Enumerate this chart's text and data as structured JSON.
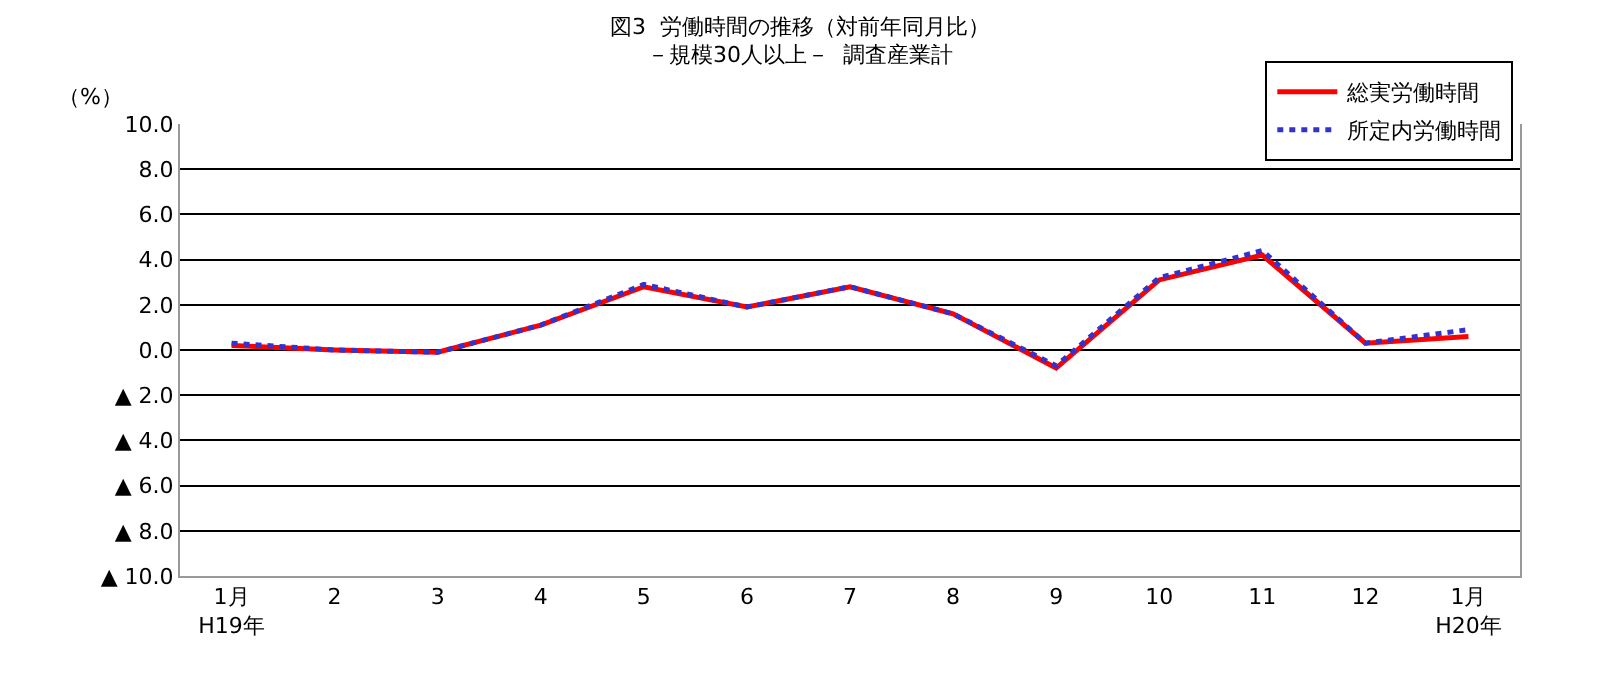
{
  "chart_data": {
    "type": "line",
    "title": "図3  労働時間の推移（対前年同月比）",
    "subtitle": "－規模30人以上－  調査産業計",
    "ylabel": "（%）",
    "categories": [
      "1月\nH19年",
      "2",
      "3",
      "4",
      "5",
      "6",
      "7",
      "8",
      "9",
      "10",
      "11",
      "12",
      "1月\nH20年"
    ],
    "series": [
      {
        "name": "総実労働時間",
        "color": "#ff0000",
        "line_style": "solid",
        "values": [
          0.2,
          0.0,
          -0.1,
          1.1,
          2.8,
          1.9,
          2.8,
          1.6,
          -0.8,
          3.1,
          4.2,
          0.3,
          0.6
        ]
      },
      {
        "name": "所定内労働時間",
        "color": "#3333cc",
        "line_style": "dotted",
        "values": [
          0.3,
          0.0,
          -0.1,
          1.1,
          2.9,
          1.9,
          2.8,
          1.6,
          -0.7,
          3.2,
          4.4,
          0.3,
          0.9
        ]
      }
    ],
    "ylim": [
      -10,
      10
    ],
    "yticks": [
      {
        "value": 10,
        "label": "10.0"
      },
      {
        "value": 8,
        "label": "8.0"
      },
      {
        "value": 6,
        "label": "6.0"
      },
      {
        "value": 4,
        "label": "4.0"
      },
      {
        "value": 2,
        "label": "2.0"
      },
      {
        "value": 0,
        "label": "0.0"
      },
      {
        "value": -2,
        "label": "▲ 2.0"
      },
      {
        "value": -4,
        "label": "▲ 4.0"
      },
      {
        "value": -6,
        "label": "▲ 6.0"
      },
      {
        "value": -8,
        "label": "▲ 8.0"
      },
      {
        "value": -10,
        "label": "▲ 10.0"
      }
    ],
    "grid": "y",
    "legend": "top right",
    "marker": "none"
  }
}
